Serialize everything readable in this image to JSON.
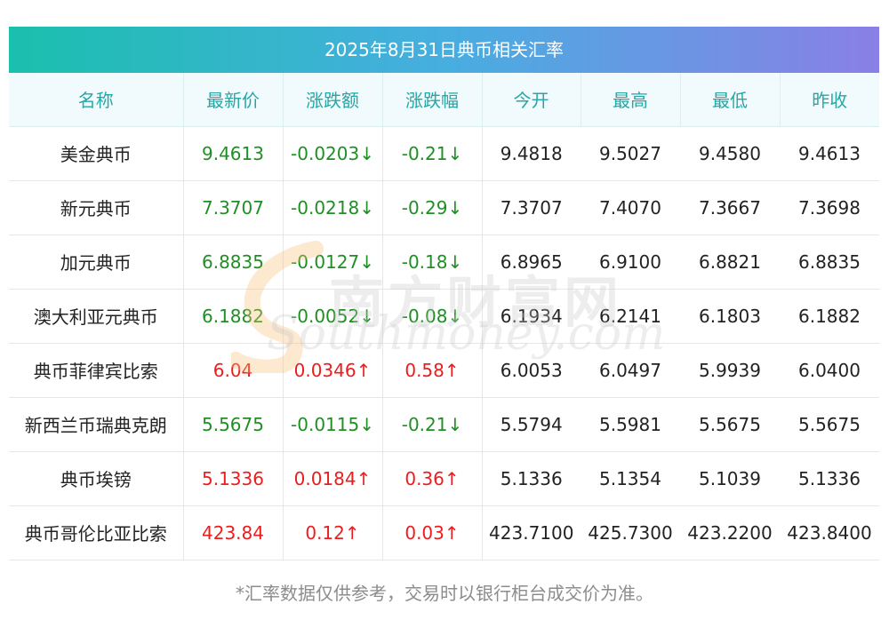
{
  "title": "2025年8月31日典币相关汇率",
  "columns": [
    "名称",
    "最新价",
    "涨跌额",
    "涨跌幅",
    "今开",
    "最高",
    "最低",
    "昨收"
  ],
  "rows": [
    {
      "name": "美金典币",
      "latest": "9.4613",
      "change": "-0.0203↓",
      "pct": "-0.21↓",
      "open": "9.4818",
      "high": "9.5027",
      "low": "9.4580",
      "prev": "9.4613",
      "trend": "down"
    },
    {
      "name": "新元典币",
      "latest": "7.3707",
      "change": "-0.0218↓",
      "pct": "-0.29↓",
      "open": "7.3707",
      "high": "7.4070",
      "low": "7.3667",
      "prev": "7.3698",
      "trend": "down"
    },
    {
      "name": "加元典币",
      "latest": "6.8835",
      "change": "-0.0127↓",
      "pct": "-0.18↓",
      "open": "6.8965",
      "high": "6.9100",
      "low": "6.8821",
      "prev": "6.8835",
      "trend": "down"
    },
    {
      "name": "澳大利亚元典币",
      "latest": "6.1882",
      "change": "-0.0052↓",
      "pct": "-0.08↓",
      "open": "6.1934",
      "high": "6.2141",
      "low": "6.1803",
      "prev": "6.1882",
      "trend": "down"
    },
    {
      "name": "典币菲律宾比索",
      "latest": "6.04",
      "change": "0.0346↑",
      "pct": "0.58↑",
      "open": "6.0053",
      "high": "6.0497",
      "low": "5.9939",
      "prev": "6.0400",
      "trend": "up"
    },
    {
      "name": "新西兰币瑞典克朗",
      "latest": "5.5675",
      "change": "-0.0115↓",
      "pct": "-0.21↓",
      "open": "5.5794",
      "high": "5.5981",
      "low": "5.5675",
      "prev": "5.5675",
      "trend": "down"
    },
    {
      "name": "典币埃镑",
      "latest": "5.1336",
      "change": "0.0184↑",
      "pct": "0.36↑",
      "open": "5.1336",
      "high": "5.1354",
      "low": "5.1039",
      "prev": "5.1336",
      "trend": "up"
    },
    {
      "name": "典币哥伦比亚比索",
      "latest": "423.84",
      "change": "0.12↑",
      "pct": "0.03↑",
      "open": "423.7100",
      "high": "425.7300",
      "low": "423.2200",
      "prev": "423.8400",
      "trend": "up"
    }
  ],
  "footnote": "*汇率数据仅供参考，交易时以银行柜台成交价为准。",
  "watermark": {
    "cn": "南方财富网",
    "en": "Southmoney.com"
  },
  "colors": {
    "up": "#ee1c1c",
    "down": "#1f8f24",
    "header_text": "#26a6a6",
    "title_gradient_start": "#1bbfae",
    "title_gradient_end": "#8a7fe6"
  }
}
